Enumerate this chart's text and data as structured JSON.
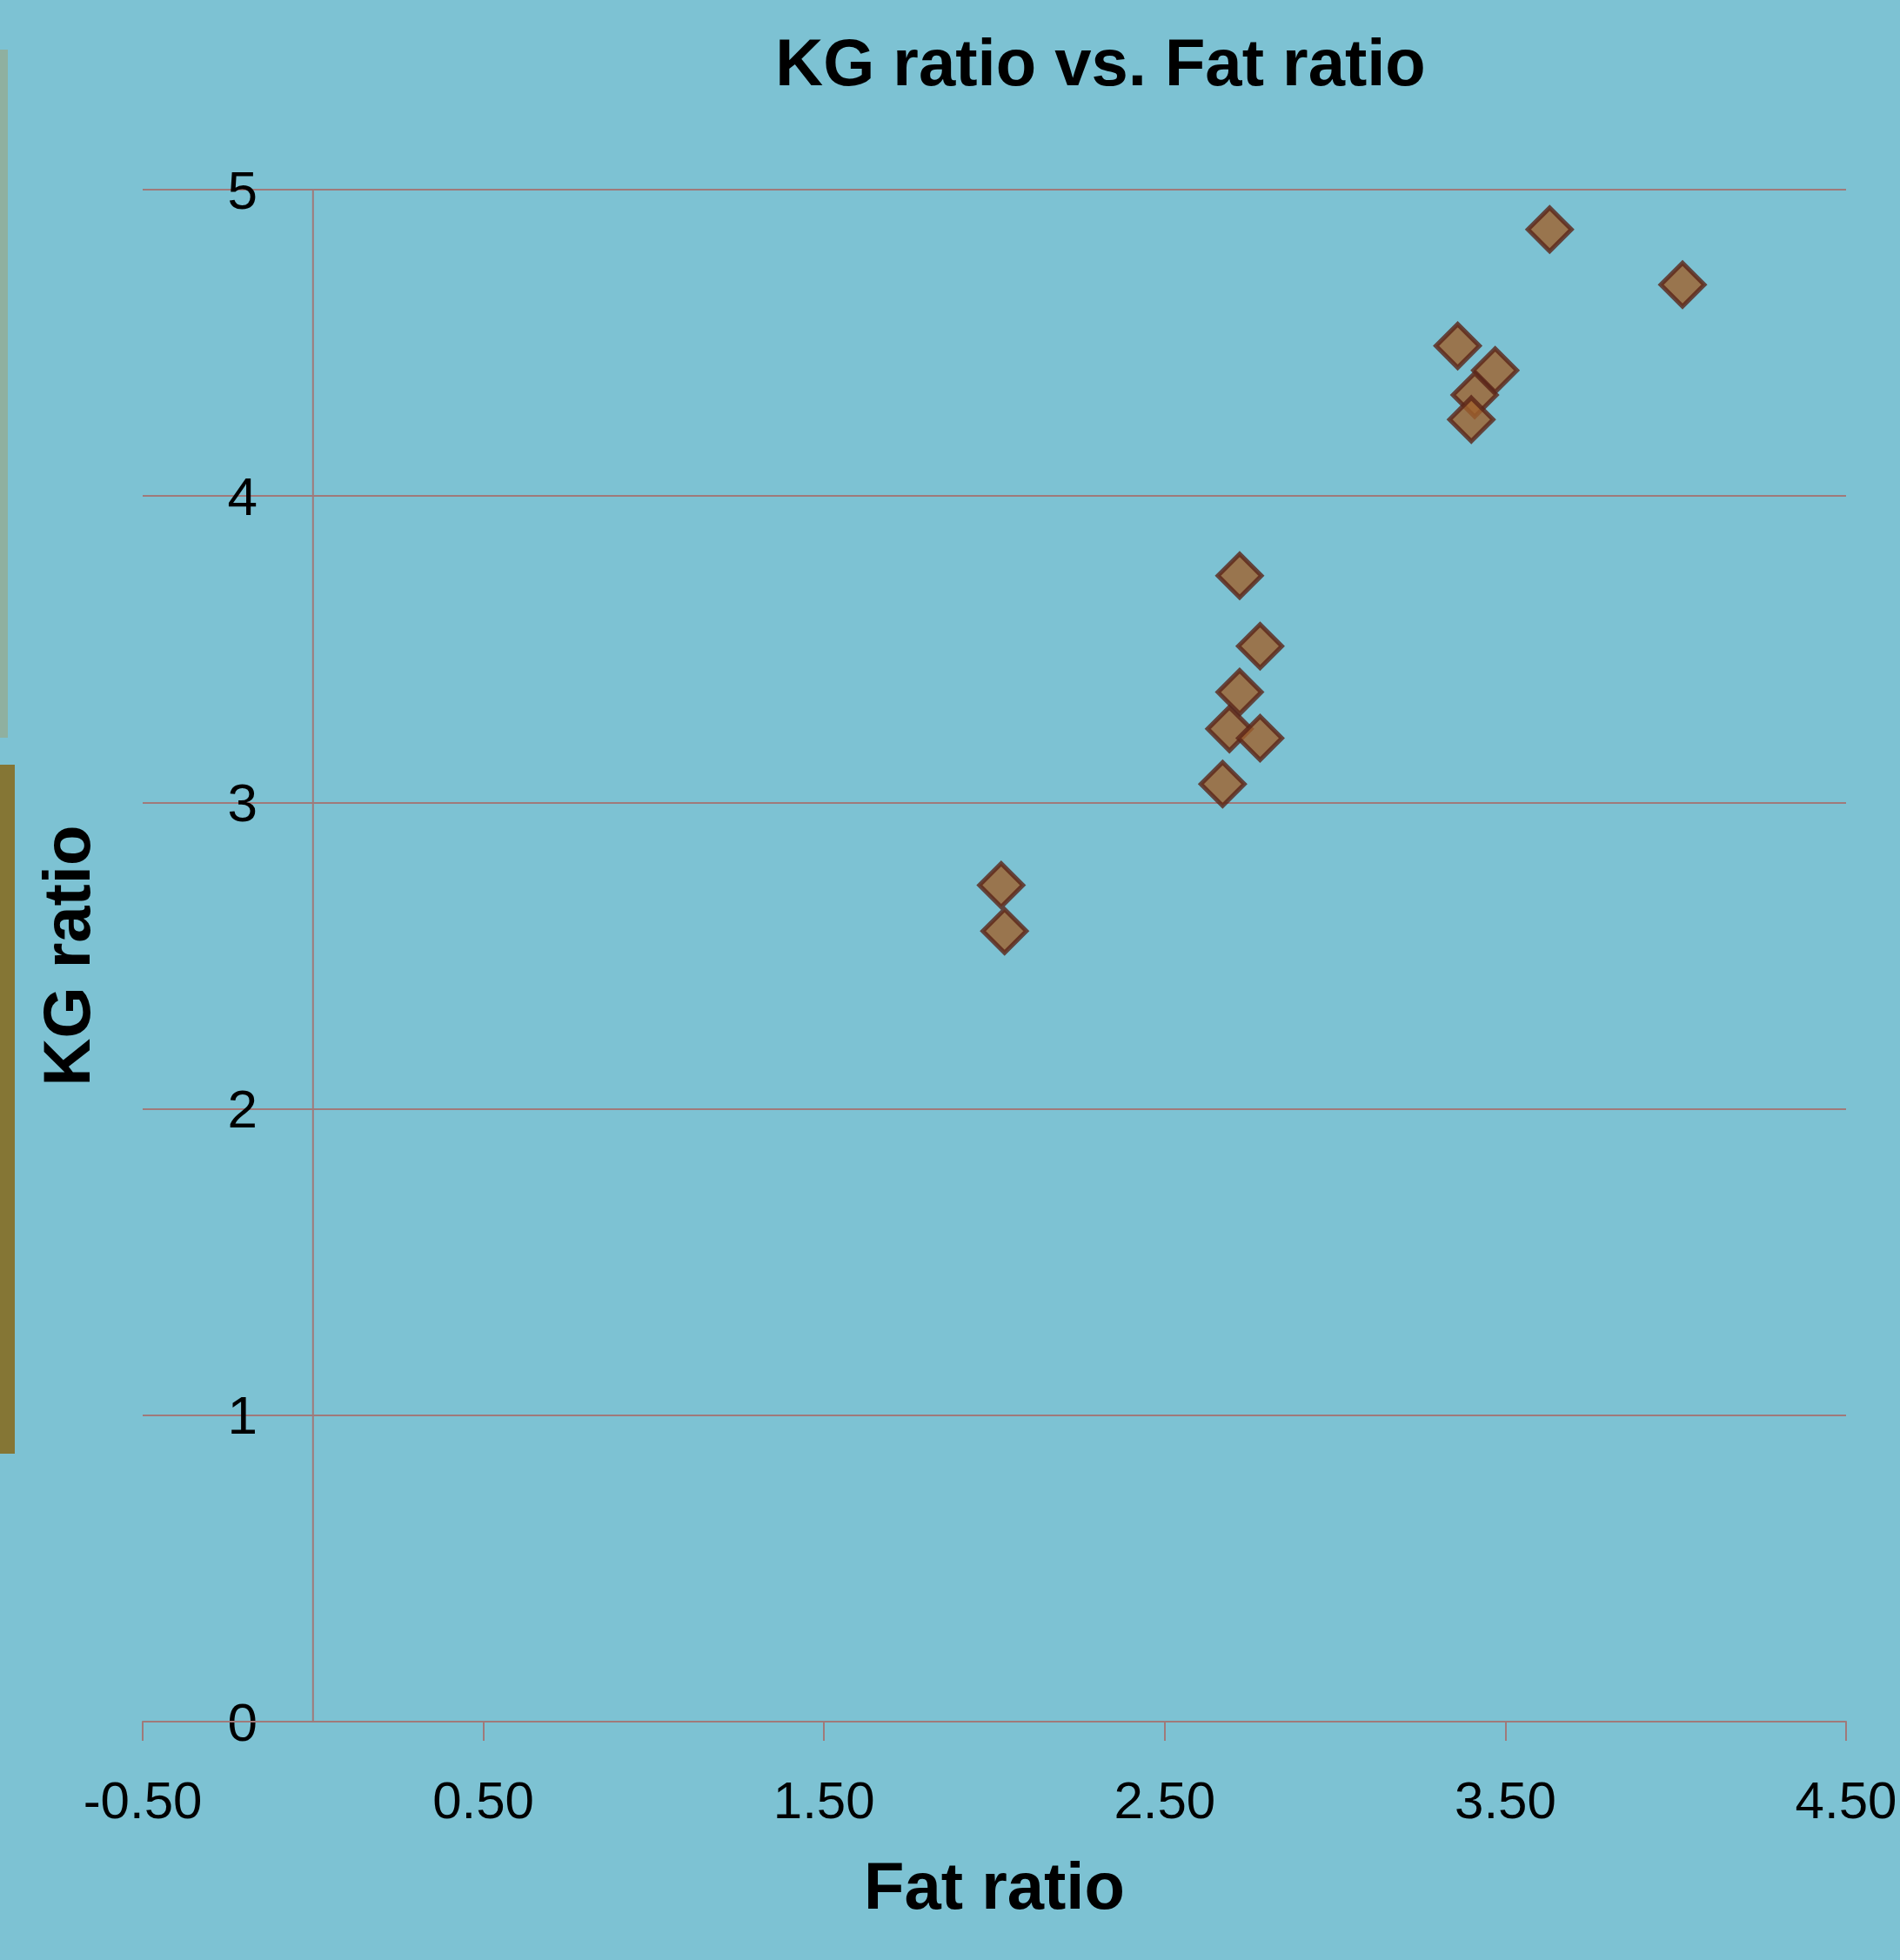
{
  "chart_data": {
    "type": "scatter",
    "title": "KG ratio vs. Fat ratio",
    "xlabel": "Fat ratio",
    "ylabel": "KG ratio",
    "x": [
      3.63,
      4.02,
      3.36,
      3.47,
      3.41,
      3.4,
      2.72,
      2.78,
      2.72,
      2.69,
      2.78,
      2.67,
      2.02,
      2.03
    ],
    "series": [
      {
        "color": "#a0612d",
        "values": [
          4.87,
          4.69,
          4.49,
          4.41,
          4.33,
          4.25,
          3.74,
          3.51,
          3.36,
          3.24,
          3.21,
          3.06,
          2.73,
          2.58
        ]
      }
    ],
    "xlim": [
      -0.5,
      4.5
    ],
    "xticks": [
      {
        "value": -0.5,
        "label": "-0.50"
      },
      {
        "value": 0.5,
        "label": "0.50"
      },
      {
        "value": 1.5,
        "label": "1.50"
      },
      {
        "value": 2.5,
        "label": "2.50"
      },
      {
        "value": 3.5,
        "label": "3.50"
      },
      {
        "value": 4.5,
        "label": "4.50"
      }
    ],
    "ylim": [
      0,
      5
    ],
    "yticks": [
      0,
      1,
      2,
      3,
      4,
      5
    ],
    "grid": "y",
    "marker": "diamond"
  }
}
